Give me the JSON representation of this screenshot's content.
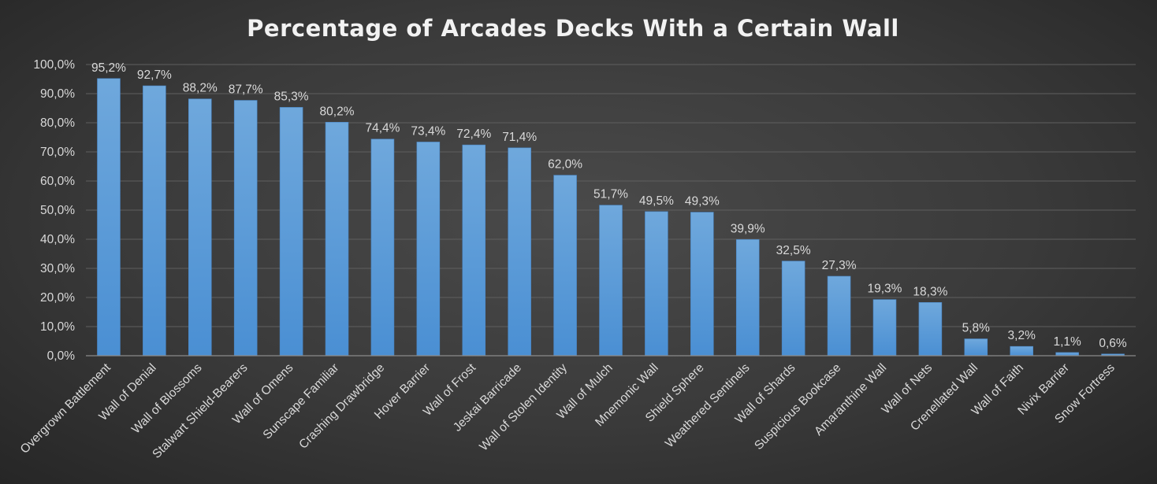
{
  "chart_data": {
    "type": "bar",
    "title": "Percentage of Arcades Decks With a Certain Wall",
    "xlabel": "",
    "ylabel": "",
    "ylim": [
      0,
      100
    ],
    "yticks": [
      0,
      10,
      20,
      30,
      40,
      50,
      60,
      70,
      80,
      90,
      100
    ],
    "ytick_labels": [
      "0,0%",
      "10,0%",
      "20,0%",
      "30,0%",
      "40,0%",
      "50,0%",
      "60,0%",
      "70,0%",
      "80,0%",
      "90,0%",
      "100,0%"
    ],
    "grid": true,
    "legend": "none",
    "bar_color": "#5b9bd5",
    "categories": [
      "Overgrown Battlement",
      "Wall of Denial",
      "Wall of Blossoms",
      "Stalwart Shield-Bearers",
      "Wall of Omens",
      "Sunscape Familiar",
      "Crashing Drawbridge",
      "Hover Barrier",
      "Wall of Frost",
      "Jeskai Barricade",
      "Wall of Stolen Identity",
      "Wall of Mulch",
      "Mnemonic Wall",
      "Shield Sphere",
      "Weathered Sentinels",
      "Wall of Shards",
      "Suspicious Bookcase",
      "Amaranthine Wall",
      "Wall of Nets",
      "Crenellated Wall",
      "Wall of Faith",
      "Nivix Barrier",
      "Snow Fortress"
    ],
    "values": [
      95.2,
      92.7,
      88.2,
      87.7,
      85.3,
      80.2,
      74.4,
      73.4,
      72.4,
      71.4,
      62.0,
      51.7,
      49.5,
      49.3,
      39.9,
      32.5,
      27.3,
      19.3,
      18.3,
      5.8,
      3.2,
      1.1,
      0.6
    ],
    "data_labels": [
      "95,2%",
      "92,7%",
      "88,2%",
      "87,7%",
      "85,3%",
      "80,2%",
      "74,4%",
      "73,4%",
      "72,4%",
      "71,4%",
      "62,0%",
      "51,7%",
      "49,5%",
      "49,3%",
      "39,9%",
      "32,5%",
      "27,3%",
      "19,3%",
      "18,3%",
      "5,8%",
      "3,2%",
      "1,1%",
      "0,6%"
    ]
  }
}
